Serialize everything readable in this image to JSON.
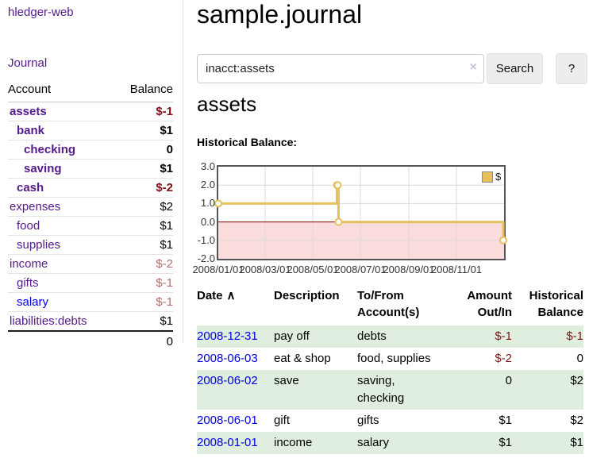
{
  "sidebar": {
    "brand": "hledger-web",
    "journal_label": "Journal",
    "accounts": {
      "header_account": "Account",
      "header_balance": "Balance",
      "rows": [
        {
          "name": "assets",
          "balance": "$-1",
          "depth": 0,
          "bold": true,
          "name_color": "purple",
          "balance_color": "neg"
        },
        {
          "name": "bank",
          "balance": "$1",
          "depth": 1,
          "bold": true,
          "name_color": "purple",
          "balance_color": "pos"
        },
        {
          "name": "checking",
          "balance": "0",
          "depth": 2,
          "bold": true,
          "name_color": "purple",
          "balance_color": "pos"
        },
        {
          "name": "saving",
          "balance": "$1",
          "depth": 2,
          "bold": true,
          "name_color": "purple",
          "balance_color": "pos"
        },
        {
          "name": "cash",
          "balance": "$-2",
          "depth": 1,
          "bold": true,
          "name_color": "purple",
          "balance_color": "neg"
        },
        {
          "name": "expenses",
          "balance": "$2",
          "depth": 0,
          "bold": false,
          "name_color": "purple",
          "balance_color": "pos"
        },
        {
          "name": "food",
          "balance": "$1",
          "depth": 1,
          "bold": false,
          "name_color": "purple",
          "balance_color": "pos"
        },
        {
          "name": "supplies",
          "balance": "$1",
          "depth": 1,
          "bold": false,
          "name_color": "purple",
          "balance_color": "pos"
        },
        {
          "name": "income",
          "balance": "$-2",
          "depth": 0,
          "bold": false,
          "name_color": "purple",
          "balance_color": "neg-weak"
        },
        {
          "name": "gifts",
          "balance": "$-1",
          "depth": 1,
          "bold": false,
          "name_color": "purple",
          "balance_color": "neg-weak"
        },
        {
          "name": "salary",
          "balance": "$-1",
          "depth": 1,
          "bold": false,
          "name_color": "blue",
          "balance_color": "neg-weak"
        },
        {
          "name": "liabilities:debts",
          "balance": "$1",
          "depth": 0,
          "bold": false,
          "name_color": "purple",
          "balance_color": "pos"
        }
      ],
      "total": "0"
    }
  },
  "main": {
    "title": "sample.journal",
    "search": {
      "value": "inacct:assets",
      "clear_icon": "×",
      "button_label": "Search",
      "help_label": "?"
    },
    "account_heading": "assets",
    "chart_heading": "Historical Balance:"
  },
  "chart_data": {
    "type": "line",
    "step": true,
    "title": "Historical Balance:",
    "x_range": [
      "2008-01-01",
      "2009-01-01"
    ],
    "ylim": [
      -2.0,
      3.0
    ],
    "yticks": [
      3.0,
      2.0,
      1.0,
      0.0,
      -1.0,
      -2.0
    ],
    "xtick_labels": [
      "2008/01/01",
      "2008/03/01",
      "2008/05/01",
      "2008/07/01",
      "2008/09/01",
      "2008/11/01"
    ],
    "series": [
      {
        "name": "$",
        "color": "#e6c05c",
        "points": [
          [
            "2008-01-01",
            1
          ],
          [
            "2008-06-01",
            2
          ],
          [
            "2008-06-02",
            2
          ],
          [
            "2008-06-03",
            0
          ],
          [
            "2008-12-31",
            -1
          ]
        ]
      }
    ],
    "grid": true,
    "legend_position": "top-right",
    "negative_region_color": "#fbdcdc",
    "zero_line_color": "#8b0000"
  },
  "register": {
    "headers": [
      {
        "label": "Date",
        "sort_icon": "∧",
        "align": "left"
      },
      {
        "label": "Description",
        "align": "left"
      },
      {
        "label": "To/From\nAccount(s)",
        "align": "left"
      },
      {
        "label": "Amount\nOut/In",
        "align": "right"
      },
      {
        "label": "Historical\nBalance",
        "align": "right"
      }
    ],
    "rows": [
      {
        "date": "2008-12-31",
        "description": "pay off",
        "accounts": "debts",
        "amount": "$-1",
        "amount_neg": true,
        "balance": "$-1",
        "balance_neg": true
      },
      {
        "date": "2008-06-03",
        "description": "eat & shop",
        "accounts": "food, supplies",
        "amount": "$-2",
        "amount_neg": true,
        "balance": "0",
        "balance_neg": false
      },
      {
        "date": "2008-06-02",
        "description": "save",
        "accounts": "saving, checking",
        "amount": "0",
        "amount_neg": false,
        "balance": "$2",
        "balance_neg": false
      },
      {
        "date": "2008-06-01",
        "description": "gift",
        "accounts": "gifts",
        "amount": "$1",
        "amount_neg": false,
        "balance": "$2",
        "balance_neg": false
      },
      {
        "date": "2008-01-01",
        "description": "income",
        "accounts": "salary",
        "amount": "$1",
        "amount_neg": false,
        "balance": "$1",
        "balance_neg": false
      }
    ]
  },
  "colors": {
    "link_purple": "#551a8b",
    "link_blue": "#0000e0",
    "negative_strong": "#7f1419",
    "negative_weak": "#b26d6d",
    "table_stripe_green": "#dfeedf",
    "button_bg": "#ededed",
    "chart_line_gold": "#e6c05c",
    "chart_negative_fill": "#fbdcdc",
    "chart_zero_line": "#8b0000",
    "chart_border": "#555555"
  }
}
